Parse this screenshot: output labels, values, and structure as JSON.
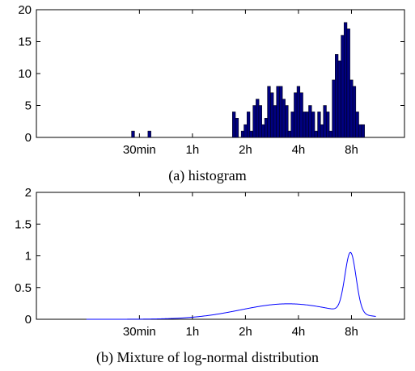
{
  "chart_data": [
    {
      "type": "bar",
      "caption": "(a)  histogram",
      "x_scale": "log",
      "x_unit": "hours",
      "xlim": [
        0.13,
        16
      ],
      "ylim": [
        0,
        20
      ],
      "yticks": [
        0,
        5,
        10,
        15,
        20
      ],
      "xticks": [
        {
          "value": 0.5,
          "label": "30min"
        },
        {
          "value": 1,
          "label": "1h"
        },
        {
          "value": 2,
          "label": "2h"
        },
        {
          "value": 4,
          "label": "4h"
        },
        {
          "value": 8,
          "label": "8h"
        }
      ],
      "bar_color": "#00007f",
      "bars": [
        {
          "x": 0.46,
          "y": 1
        },
        {
          "x": 0.57,
          "y": 1
        },
        {
          "x": 1.72,
          "y": 4
        },
        {
          "x": 1.79,
          "y": 3
        },
        {
          "x": 1.93,
          "y": 1
        },
        {
          "x": 2.0,
          "y": 2
        },
        {
          "x": 2.08,
          "y": 4
        },
        {
          "x": 2.16,
          "y": 1
        },
        {
          "x": 2.25,
          "y": 5
        },
        {
          "x": 2.34,
          "y": 6
        },
        {
          "x": 2.43,
          "y": 5
        },
        {
          "x": 2.52,
          "y": 2
        },
        {
          "x": 2.62,
          "y": 3
        },
        {
          "x": 2.72,
          "y": 8
        },
        {
          "x": 2.83,
          "y": 7
        },
        {
          "x": 2.94,
          "y": 5
        },
        {
          "x": 3.06,
          "y": 8
        },
        {
          "x": 3.18,
          "y": 8
        },
        {
          "x": 3.3,
          "y": 6
        },
        {
          "x": 3.43,
          "y": 5
        },
        {
          "x": 3.56,
          "y": 1
        },
        {
          "x": 3.7,
          "y": 4
        },
        {
          "x": 3.85,
          "y": 7
        },
        {
          "x": 4.0,
          "y": 8
        },
        {
          "x": 4.16,
          "y": 7
        },
        {
          "x": 4.32,
          "y": 4
        },
        {
          "x": 4.49,
          "y": 4
        },
        {
          "x": 4.66,
          "y": 5
        },
        {
          "x": 4.85,
          "y": 4
        },
        {
          "x": 5.04,
          "y": 1
        },
        {
          "x": 5.24,
          "y": 4
        },
        {
          "x": 5.44,
          "y": 2
        },
        {
          "x": 5.65,
          "y": 5
        },
        {
          "x": 5.87,
          "y": 4
        },
        {
          "x": 6.1,
          "y": 1
        },
        {
          "x": 6.34,
          "y": 9
        },
        {
          "x": 6.59,
          "y": 13
        },
        {
          "x": 6.85,
          "y": 12
        },
        {
          "x": 7.12,
          "y": 16
        },
        {
          "x": 7.4,
          "y": 18
        },
        {
          "x": 7.69,
          "y": 17
        },
        {
          "x": 7.99,
          "y": 9
        },
        {
          "x": 8.3,
          "y": 8
        },
        {
          "x": 8.63,
          "y": 4
        },
        {
          "x": 8.96,
          "y": 2
        },
        {
          "x": 9.31,
          "y": 2
        }
      ]
    },
    {
      "type": "line",
      "caption": "(b)  Mixture of log-normal distribution",
      "x_scale": "log",
      "x_unit": "hours",
      "xlim": [
        0.13,
        16
      ],
      "ylim": [
        0,
        2
      ],
      "yticks": [
        0,
        0.5,
        1,
        1.5,
        2
      ],
      "ytick_labels": [
        "0",
        "0.5",
        "1",
        "1.5",
        "2"
      ],
      "xticks": [
        {
          "value": 0.5,
          "label": "30min"
        },
        {
          "value": 1,
          "label": "1h"
        },
        {
          "value": 2,
          "label": "2h"
        },
        {
          "value": 4,
          "label": "4h"
        },
        {
          "value": 8,
          "label": "8h"
        }
      ],
      "line_color": "#0000ff",
      "x_range": [
        0.25,
        11.0
      ],
      "components": [
        {
          "weight": 0.55,
          "center_hours": 3.5,
          "sigma_log2": 0.9
        },
        {
          "weight": 0.25,
          "center_hours": 7.9,
          "sigma_log2": 0.105
        }
      ]
    }
  ]
}
